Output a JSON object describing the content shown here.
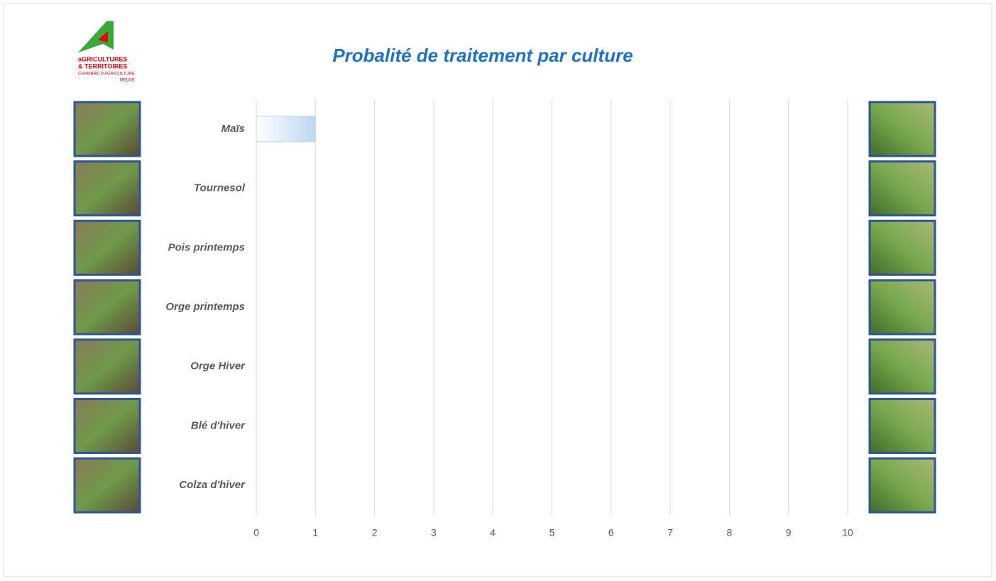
{
  "logo": [
    "aGRICULTURES",
    "& TERRITOIRES",
    "CHAMBRE D'AGRICULTURE",
    "MEUSE"
  ],
  "chart_data": {
    "type": "bar",
    "orientation": "horizontal",
    "title": "Probalité de traitement par culture",
    "categories": [
      "Maïs",
      "Tournesol",
      "Pois printemps",
      "Orge printemps",
      "Orge Hiver",
      "Blé d'hiver",
      "Colza d'hiver"
    ],
    "values": [
      1,
      0,
      0,
      0,
      0,
      0,
      0
    ],
    "color": "#bdd7ee",
    "xlim": [
      0,
      10
    ],
    "xticks": [
      0,
      1,
      2,
      3,
      4,
      5,
      6,
      7,
      8,
      9,
      10
    ],
    "grid": true
  }
}
